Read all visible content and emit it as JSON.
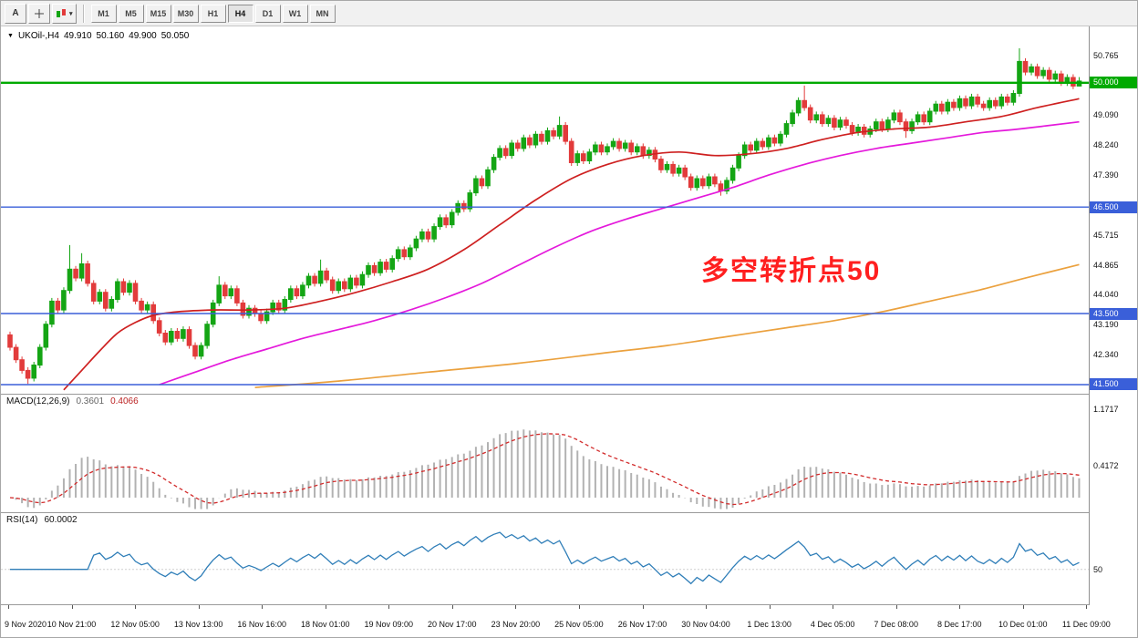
{
  "toolbar": {
    "pointer_label": "A",
    "dropdown_caret": "▾",
    "timeframes": [
      "M1",
      "M5",
      "M15",
      "M30",
      "H1",
      "H4",
      "D1",
      "W1",
      "MN"
    ],
    "active_timeframe": "H4"
  },
  "chart": {
    "title_marker": "▼",
    "symbol_period": "UKOil-,H4",
    "open": "49.910",
    "high": "50.160",
    "low": "49.900",
    "close": "50.050",
    "annotation": "多空转折点50",
    "price_axis_labels": [
      {
        "text": "50.765",
        "price": 50.765
      },
      {
        "text": "49.090",
        "price": 49.09
      },
      {
        "text": "48.240",
        "price": 48.24
      },
      {
        "text": "47.390",
        "price": 47.39
      },
      {
        "text": "45.715",
        "price": 45.715
      },
      {
        "text": "44.865",
        "price": 44.865
      },
      {
        "text": "44.040",
        "price": 44.04
      },
      {
        "text": "43.190",
        "price": 43.19
      },
      {
        "text": "42.340",
        "price": 42.34
      }
    ],
    "price_badges": [
      {
        "text": "50.000",
        "price": 50.0,
        "color": "#00AA00"
      },
      {
        "text": "46.500",
        "price": 46.5,
        "color": "#3A5FD9"
      },
      {
        "text": "43.500",
        "price": 43.5,
        "color": "#3A5FD9"
      },
      {
        "text": "41.500",
        "price": 41.5,
        "color": "#3A5FD9"
      }
    ],
    "hlines": [
      {
        "price": 50.0,
        "color": "#00AA00",
        "width": 2.4
      },
      {
        "price": 46.5,
        "color": "#3A5FD9",
        "width": 1.4
      },
      {
        "price": 43.5,
        "color": "#3A5FD9",
        "width": 1.4
      },
      {
        "price": 41.5,
        "color": "#3A5FD9",
        "width": 1.4
      }
    ]
  },
  "macd_panel": {
    "name": "MACD(12,26,9)",
    "value_main": "0.3601",
    "value_signal": "0.4066",
    "axis_labels": [
      {
        "text": "1.1717",
        "value": 1.1717
      },
      {
        "text": "0.4172",
        "value": 0.4172
      }
    ]
  },
  "rsi_panel": {
    "name": "RSI(14)",
    "value": "60.0002",
    "axis_labels": [
      {
        "text": "50",
        "value": 50
      }
    ]
  },
  "time_axis": [
    "9 Nov 2020",
    "10 Nov 21:00",
    "12 Nov 05:00",
    "13 Nov 13:00",
    "16 Nov 16:00",
    "18 Nov 01:00",
    "19 Nov 09:00",
    "20 Nov 17:00",
    "23 Nov 20:00",
    "25 Nov 05:00",
    "26 Nov 17:00",
    "30 Nov 04:00",
    "1 Dec 13:00",
    "4 Dec 05:00",
    "7 Dec 08:00",
    "8 Dec 17:00",
    "10 Dec 01:00",
    "11 Dec 09:00"
  ],
  "chart_data": {
    "type": "candlestick",
    "symbol": "UKOil-",
    "timeframe": "H4",
    "last_ohlc": {
      "open": 49.91,
      "high": 50.16,
      "low": 49.9,
      "close": 50.05
    },
    "axis_top_price": 50.765,
    "axis_bottom_price": 41.5,
    "first_open": 42.9,
    "default_wick": 0.09,
    "closes": [
      42.55,
      42.2,
      41.9,
      41.68,
      42.05,
      42.55,
      43.2,
      43.85,
      43.6,
      44.15,
      44.75,
      44.5,
      44.9,
      44.35,
      43.85,
      44.1,
      43.65,
      43.9,
      44.4,
      44.1,
      44.35,
      43.85,
      43.6,
      43.75,
      43.3,
      42.95,
      42.7,
      43.0,
      42.8,
      43.05,
      42.6,
      42.3,
      42.6,
      43.2,
      43.8,
      44.3,
      44.0,
      44.2,
      43.8,
      43.45,
      43.65,
      43.5,
      43.3,
      43.55,
      43.8,
      43.6,
      43.9,
      44.2,
      44.0,
      44.3,
      44.55,
      44.35,
      44.7,
      44.45,
      44.15,
      44.4,
      44.2,
      44.5,
      44.3,
      44.6,
      44.85,
      44.65,
      44.95,
      44.75,
      45.05,
      45.3,
      45.1,
      45.35,
      45.6,
      45.8,
      45.6,
      45.95,
      46.2,
      46.0,
      46.35,
      46.6,
      46.45,
      46.9,
      47.3,
      47.1,
      47.55,
      47.9,
      48.15,
      47.95,
      48.3,
      48.15,
      48.45,
      48.25,
      48.55,
      48.35,
      48.65,
      48.5,
      48.8,
      48.35,
      47.75,
      48.0,
      47.8,
      48.05,
      48.25,
      48.05,
      48.2,
      48.35,
      48.15,
      48.3,
      48.05,
      48.2,
      47.95,
      48.1,
      47.85,
      47.55,
      47.7,
      47.45,
      47.6,
      47.35,
      47.05,
      47.3,
      47.1,
      47.35,
      47.15,
      46.95,
      47.25,
      47.6,
      47.95,
      48.25,
      48.1,
      48.35,
      48.2,
      48.45,
      48.3,
      48.55,
      48.85,
      49.15,
      49.5,
      49.3,
      48.95,
      49.1,
      48.85,
      49.0,
      48.75,
      48.95,
      48.8,
      48.6,
      48.75,
      48.55,
      48.7,
      48.9,
      48.7,
      48.95,
      49.15,
      48.9,
      48.65,
      48.9,
      49.1,
      48.9,
      49.2,
      49.4,
      49.2,
      49.45,
      49.3,
      49.55,
      49.35,
      49.6,
      49.4,
      49.3,
      49.5,
      49.35,
      49.6,
      49.45,
      49.7,
      50.6,
      50.3,
      50.45,
      50.2,
      50.35,
      50.1,
      50.25,
      50.0,
      50.15,
      49.91,
      50.05
    ],
    "wick_overrides": {
      "3": [
        null,
        41.52
      ],
      "10": [
        45.43,
        null
      ],
      "12": [
        45.2,
        null
      ],
      "35": [
        44.55,
        null
      ],
      "52": [
        45.02,
        null
      ],
      "92": [
        49.05,
        null
      ],
      "119": [
        null,
        46.82
      ],
      "133": [
        49.92,
        null
      ],
      "150": [
        null,
        48.45
      ],
      "169": [
        50.97,
        null
      ],
      "179": [
        50.16,
        49.9
      ]
    },
    "candle_colors": {
      "up": "#14A514",
      "down": "#E23B3B"
    },
    "moving_averages": [
      {
        "name": "fast",
        "color": "#CE2020",
        "points": [
          [
            9,
            41.35
          ],
          [
            12,
            41.9
          ],
          [
            15,
            42.45
          ],
          [
            18,
            42.95
          ],
          [
            21,
            43.25
          ],
          [
            24,
            43.45
          ],
          [
            28,
            43.55
          ],
          [
            34,
            43.6
          ],
          [
            40,
            43.6
          ],
          [
            46,
            43.65
          ],
          [
            52,
            43.85
          ],
          [
            58,
            44.1
          ],
          [
            64,
            44.4
          ],
          [
            70,
            44.75
          ],
          [
            76,
            45.3
          ],
          [
            82,
            46.0
          ],
          [
            88,
            46.7
          ],
          [
            94,
            47.3
          ],
          [
            100,
            47.7
          ],
          [
            106,
            47.95
          ],
          [
            112,
            48.05
          ],
          [
            118,
            47.95
          ],
          [
            124,
            48.0
          ],
          [
            130,
            48.15
          ],
          [
            136,
            48.4
          ],
          [
            142,
            48.6
          ],
          [
            148,
            48.7
          ],
          [
            154,
            48.75
          ],
          [
            160,
            48.9
          ],
          [
            166,
            49.05
          ],
          [
            172,
            49.3
          ],
          [
            179,
            49.55
          ]
        ]
      },
      {
        "name": "medium",
        "color": "#E419DB",
        "points": [
          [
            25,
            41.5
          ],
          [
            31,
            41.85
          ],
          [
            37,
            42.2
          ],
          [
            43,
            42.5
          ],
          [
            49,
            42.8
          ],
          [
            55,
            43.05
          ],
          [
            61,
            43.3
          ],
          [
            67,
            43.6
          ],
          [
            73,
            43.95
          ],
          [
            79,
            44.35
          ],
          [
            85,
            44.85
          ],
          [
            91,
            45.35
          ],
          [
            97,
            45.8
          ],
          [
            103,
            46.15
          ],
          [
            109,
            46.45
          ],
          [
            115,
            46.75
          ],
          [
            121,
            47.05
          ],
          [
            127,
            47.4
          ],
          [
            133,
            47.7
          ],
          [
            139,
            47.95
          ],
          [
            145,
            48.15
          ],
          [
            151,
            48.3
          ],
          [
            157,
            48.45
          ],
          [
            163,
            48.6
          ],
          [
            169,
            48.7
          ],
          [
            179,
            48.9
          ]
        ]
      },
      {
        "name": "slow",
        "color": "#EBA13E",
        "points": [
          [
            41,
            41.42
          ],
          [
            55,
            41.6
          ],
          [
            70,
            41.85
          ],
          [
            85,
            42.1
          ],
          [
            100,
            42.4
          ],
          [
            110,
            42.6
          ],
          [
            120,
            42.85
          ],
          [
            130,
            43.1
          ],
          [
            138,
            43.3
          ],
          [
            146,
            43.55
          ],
          [
            154,
            43.85
          ],
          [
            162,
            44.15
          ],
          [
            170,
            44.5
          ],
          [
            179,
            44.88
          ]
        ]
      }
    ],
    "indicators": {
      "macd": {
        "fast": 12,
        "slow": 26,
        "signal": 9,
        "histogram_color": "#B2B2B2",
        "signal_color": "#D22B2B"
      },
      "rsi": {
        "period": 14,
        "line_color": "#2F7EB8"
      }
    }
  }
}
